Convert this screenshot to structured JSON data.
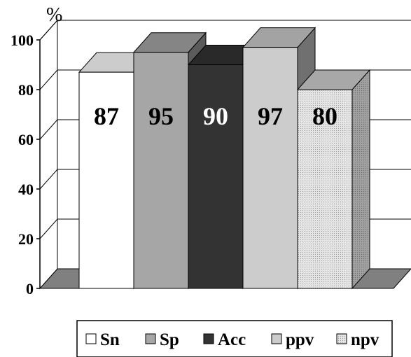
{
  "chart_data": {
    "type": "bar",
    "three_d": true,
    "categories": [
      "Sn",
      "Sp",
      "Acc",
      "ppv",
      "npv"
    ],
    "values": [
      87,
      95,
      90,
      97,
      80
    ],
    "value_labels": [
      "87",
      "95",
      "90",
      "97",
      "80"
    ],
    "ylabel": "%",
    "ylim": [
      0,
      100
    ],
    "yticks": [
      0,
      20,
      40,
      60,
      80,
      100
    ],
    "grid": true,
    "legend_position": "bottom",
    "series_colors": [
      "#ffffff",
      "#a6a6a6",
      "#333333",
      "#cccccc",
      "#dedede"
    ],
    "label_colors": [
      "#000000",
      "#000000",
      "#ffffff",
      "#000000",
      "#000000"
    ]
  }
}
